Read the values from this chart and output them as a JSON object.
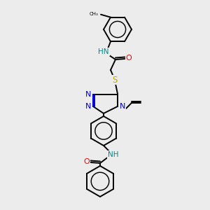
{
  "bg_color": "#ececec",
  "atom_colors": {
    "C": "#000000",
    "N": "#0000dd",
    "O": "#ff0000",
    "S": "#bbaa00",
    "H": "#000000",
    "NH": "#008888"
  },
  "line_color": "#000000",
  "line_width": 1.4,
  "figsize": [
    3.0,
    3.0
  ],
  "dpi": 100,
  "scale": 1.0
}
